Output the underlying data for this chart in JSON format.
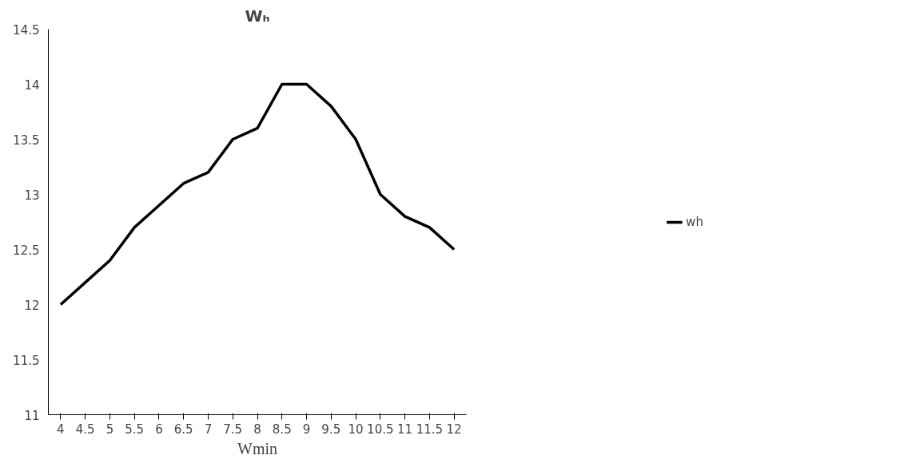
{
  "chart_data": {
    "type": "line",
    "title": "Wₕ",
    "xlabel": "Wmin",
    "categories": [
      "4",
      "4.5",
      "5",
      "5.5",
      "6",
      "6.5",
      "7",
      "7.5",
      "8",
      "8.5",
      "9",
      "9.5",
      "10",
      "10.5",
      "11",
      "11.5",
      "12"
    ],
    "series": [
      {
        "name": "wh",
        "color": "#000000",
        "values": [
          12,
          12.2,
          12.4,
          12.7,
          12.9,
          13.1,
          13.2,
          13.5,
          13.6,
          14,
          14,
          13.8,
          13.5,
          13,
          12.8,
          12.7,
          12.5
        ]
      }
    ],
    "ylim": [
      11,
      14.5
    ],
    "yticks": [
      11,
      11.5,
      12,
      12.5,
      13,
      13.5,
      14,
      14.5
    ],
    "grid": false,
    "legend": "right",
    "marker": "none",
    "line_style": "solid"
  }
}
